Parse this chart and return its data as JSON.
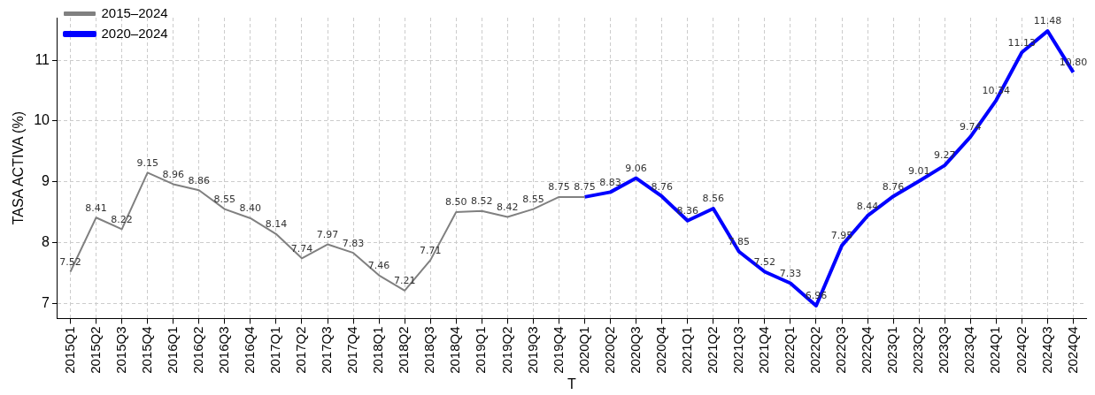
{
  "chart_data": {
    "type": "line",
    "xlabel": "T",
    "ylabel": "TASA ACTIVA (%)",
    "categories": [
      "2015Q1",
      "2015Q2",
      "2015Q3",
      "2015Q4",
      "2016Q1",
      "2016Q2",
      "2016Q3",
      "2016Q4",
      "2017Q1",
      "2017Q2",
      "2017Q3",
      "2017Q4",
      "2018Q1",
      "2018Q2",
      "2018Q3",
      "2018Q4",
      "2019Q1",
      "2019Q2",
      "2019Q3",
      "2019Q4",
      "2020Q1",
      "2020Q2",
      "2020Q3",
      "2020Q4",
      "2021Q1",
      "2021Q2",
      "2021Q3",
      "2021Q4",
      "2022Q1",
      "2022Q2",
      "2022Q3",
      "2022Q4",
      "2023Q1",
      "2023Q2",
      "2023Q3",
      "2023Q4",
      "2024Q1",
      "2024Q2",
      "2024Q3",
      "2024Q4"
    ],
    "series": [
      {
        "name": "2015–2024",
        "color": "#808080",
        "values": [
          7.52,
          8.41,
          8.22,
          9.15,
          8.96,
          8.86,
          8.55,
          8.4,
          8.14,
          7.74,
          7.97,
          7.83,
          7.46,
          7.21,
          7.71,
          8.5,
          8.52,
          8.42,
          8.55,
          8.75,
          8.75,
          null,
          null,
          null,
          null,
          null,
          null,
          null,
          null,
          null,
          null,
          null,
          null,
          null,
          null,
          null,
          null,
          null,
          null,
          null
        ],
        "value_labels": [
          "7.52",
          "8.41",
          "8.22",
          "9.15",
          "8.96",
          "8.86",
          "8.55",
          "8.40",
          "8.14",
          "7.74",
          "7.97",
          "7.83",
          "7.46",
          "7.21",
          "7.71",
          "8.50",
          "8.52",
          "8.42",
          "8.55",
          "8.75",
          null,
          null,
          null,
          null,
          null,
          null,
          null,
          null,
          null,
          null,
          null,
          null,
          null,
          null,
          null,
          null,
          null,
          null,
          null,
          null
        ]
      },
      {
        "name": "2020–2024",
        "color": "#0000ff",
        "values": [
          null,
          null,
          null,
          null,
          null,
          null,
          null,
          null,
          null,
          null,
          null,
          null,
          null,
          null,
          null,
          null,
          null,
          null,
          null,
          null,
          8.75,
          8.83,
          9.06,
          8.76,
          8.36,
          8.56,
          7.85,
          7.52,
          7.33,
          6.96,
          7.95,
          8.44,
          8.76,
          9.01,
          9.27,
          9.74,
          10.34,
          11.13,
          11.48,
          10.8
        ],
        "value_labels": [
          null,
          null,
          null,
          null,
          null,
          null,
          null,
          null,
          null,
          null,
          null,
          null,
          null,
          null,
          null,
          null,
          null,
          null,
          null,
          null,
          "8.75",
          "8.83",
          "9.06",
          "8.76",
          "8.36",
          "8.56",
          "7.85",
          "7.52",
          "7.33",
          "6.96",
          "7.95",
          "8.44",
          "8.76",
          "9.01",
          "9.27",
          "9.74",
          "10.34",
          "11.13",
          "11.48",
          "10.80"
        ]
      }
    ],
    "ylim": [
      6.75,
      11.7
    ],
    "yticks": [
      7,
      8,
      9,
      10,
      11
    ],
    "grid": true,
    "legend": "top left",
    "marker": "none",
    "line_style": "solid"
  }
}
